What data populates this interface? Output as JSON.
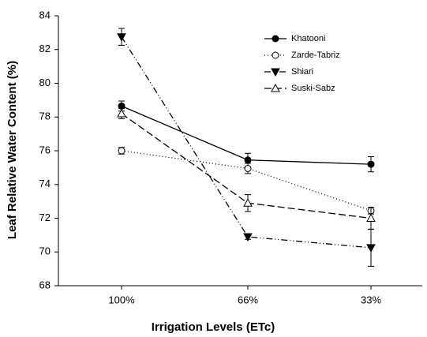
{
  "chart_data": {
    "type": "line",
    "x_label": "Irrigation Levels (ETc)",
    "y_label": "Leaf Relative Water Content (%)",
    "categories": [
      "100%",
      "66%",
      "33%"
    ],
    "ylim": [
      68,
      84
    ],
    "yticks": [
      68,
      70,
      72,
      74,
      76,
      78,
      80,
      82,
      84
    ],
    "legend": "top-right",
    "series": [
      {
        "name": "Khatooni",
        "color": "#000000",
        "marker": "circle",
        "filled": true,
        "dash": "none",
        "values": [
          78.65,
          75.45,
          75.2
        ],
        "errors": [
          0.3,
          0.4,
          0.45
        ]
      },
      {
        "name": "Zarde-Tabriz",
        "color": "#000000",
        "marker": "circle",
        "filled": false,
        "dash": "1,3",
        "values": [
          76.0,
          74.95,
          72.45
        ],
        "errors": [
          0.2,
          0.3,
          0.2
        ]
      },
      {
        "name": "Shiari",
        "color": "#000000",
        "marker": "triangle-down",
        "filled": true,
        "dash": "8,3,1,3,1,3",
        "values": [
          82.75,
          70.9,
          70.25
        ],
        "errors": [
          0.5,
          0.15,
          1.1
        ]
      },
      {
        "name": "Suski-Sabz",
        "color": "#000000",
        "marker": "triangle-up",
        "filled": false,
        "dash": "9,4",
        "values": [
          78.2,
          72.9,
          72.0
        ],
        "errors": [
          0.3,
          0.5,
          0.65
        ]
      }
    ]
  }
}
